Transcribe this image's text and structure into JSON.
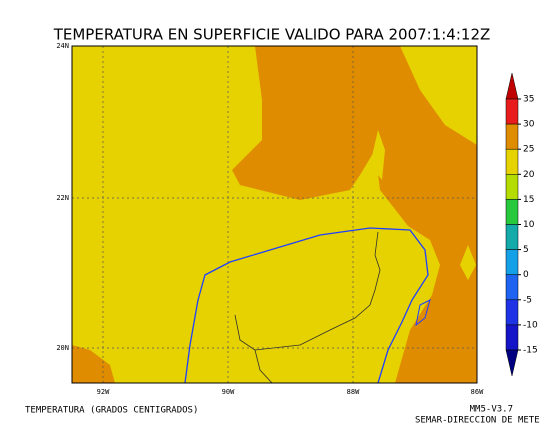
{
  "header": {
    "title": "TEMPERATURA EN SUPERFICIE VALIDO PARA 2007:1:4:12Z"
  },
  "map": {
    "lat_labels": [
      "24N",
      "22N",
      "20N"
    ],
    "lon_labels": [
      "92W",
      "90W",
      "88W",
      "86W"
    ]
  },
  "colorbar": {
    "ticks": [
      35,
      30,
      25,
      20,
      15,
      10,
      5,
      0,
      -5,
      -10,
      -15
    ],
    "colors": [
      "#c00000",
      "#e81c1c",
      "#e08c00",
      "#e6d200",
      "#b4dc00",
      "#28c83c",
      "#14aaaa",
      "#14a0e6",
      "#1e64f0",
      "#1e32e6",
      "#1414c8",
      "#000080"
    ]
  },
  "footer": {
    "variable": "TEMPERATURA (GRADOS CENTIGRADOS)",
    "model": "MM5-V3.7",
    "credit": "SEMAR-DIRECCION DE METE"
  }
}
